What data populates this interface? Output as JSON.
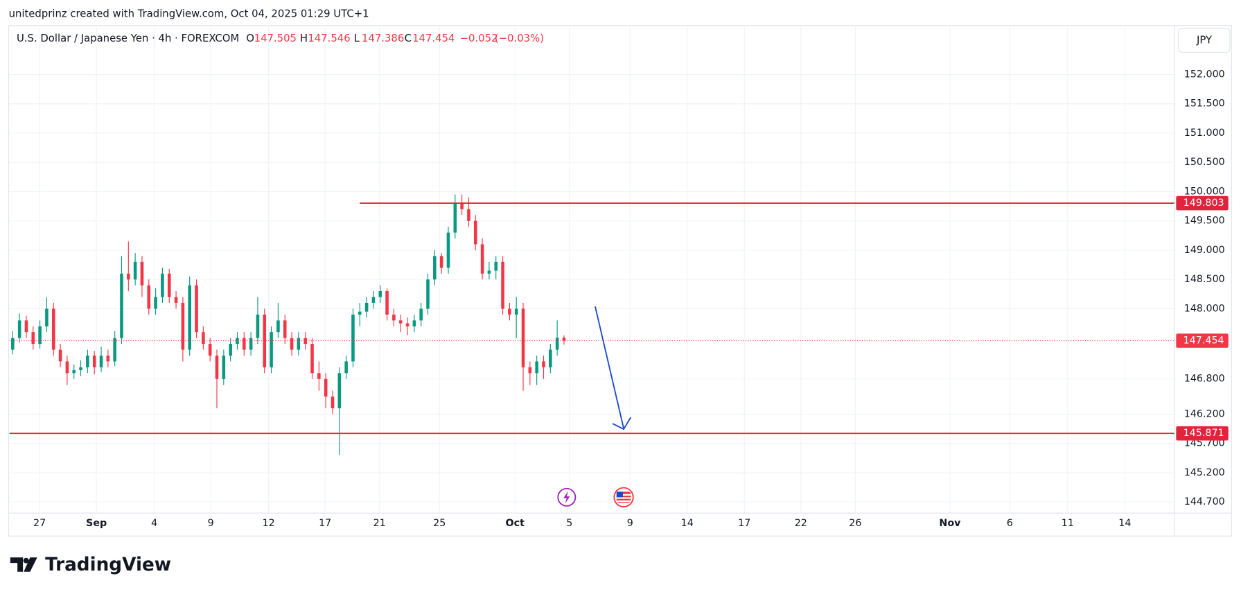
{
  "attribution": "unitedprinz created with TradingView.com, Oct 04, 2025 01:29 UTC+1",
  "brand": "TradingView",
  "chart_data": {
    "type": "candlestick",
    "title": "U.S. Dollar / Japanese Yen · 4h · FOREXCOM",
    "ohlc_labels": [
      "O",
      "H",
      "L",
      "C"
    ],
    "change": "−0.052",
    "change_percent": "(−0.03%)",
    "currency": "JPY",
    "up_color": "#089981",
    "down_color": "#f23645",
    "grid": true,
    "candles": [
      [
        147.3,
        147.62,
        147.22,
        147.5
      ],
      [
        147.5,
        147.92,
        147.42,
        147.8
      ],
      [
        147.8,
        147.88,
        147.5,
        147.6
      ],
      [
        147.6,
        147.7,
        147.3,
        147.4
      ],
      [
        147.4,
        147.8,
        147.32,
        147.7
      ],
      [
        147.7,
        148.2,
        147.6,
        148.0
      ],
      [
        148.0,
        148.1,
        147.2,
        147.3
      ],
      [
        147.3,
        147.4,
        147.0,
        147.1
      ],
      [
        147.1,
        147.2,
        146.7,
        146.9
      ],
      [
        146.9,
        147.05,
        146.8,
        146.95
      ],
      [
        146.95,
        147.12,
        146.85,
        147.0
      ],
      [
        147.0,
        147.3,
        146.9,
        147.2
      ],
      [
        147.2,
        147.28,
        146.88,
        147.0
      ],
      [
        147.0,
        147.35,
        146.92,
        147.2
      ],
      [
        147.2,
        147.3,
        147.0,
        147.1
      ],
      [
        147.1,
        147.62,
        147.02,
        147.5
      ],
      [
        147.5,
        148.9,
        147.4,
        148.6
      ],
      [
        148.6,
        149.15,
        148.3,
        148.5
      ],
      [
        148.5,
        148.95,
        148.4,
        148.8
      ],
      [
        148.8,
        148.9,
        148.2,
        148.4
      ],
      [
        148.4,
        148.5,
        147.9,
        148.0
      ],
      [
        148.0,
        148.35,
        147.9,
        148.2
      ],
      [
        148.2,
        148.7,
        148.1,
        148.6
      ],
      [
        148.6,
        148.68,
        148.1,
        148.2
      ],
      [
        148.2,
        148.3,
        148.0,
        148.1
      ],
      [
        148.1,
        148.2,
        147.1,
        147.3
      ],
      [
        147.3,
        148.55,
        147.2,
        148.4
      ],
      [
        148.4,
        148.5,
        147.5,
        147.6
      ],
      [
        147.6,
        147.7,
        147.3,
        147.4
      ],
      [
        147.4,
        147.5,
        147.1,
        147.2
      ],
      [
        147.2,
        147.3,
        146.3,
        146.8
      ],
      [
        146.8,
        147.3,
        146.7,
        147.2
      ],
      [
        147.2,
        147.5,
        147.1,
        147.4
      ],
      [
        147.4,
        147.6,
        147.3,
        147.5
      ],
      [
        147.5,
        147.6,
        147.2,
        147.3
      ],
      [
        147.3,
        147.6,
        147.2,
        147.5
      ],
      [
        147.5,
        148.2,
        147.4,
        147.9
      ],
      [
        147.9,
        148.0,
        146.9,
        147.0
      ],
      [
        147.0,
        147.7,
        146.9,
        147.6
      ],
      [
        147.6,
        148.1,
        147.5,
        147.8
      ],
      [
        147.8,
        147.9,
        147.4,
        147.5
      ],
      [
        147.5,
        147.6,
        147.2,
        147.3
      ],
      [
        147.3,
        147.6,
        147.2,
        147.5
      ],
      [
        147.5,
        147.6,
        147.3,
        147.4
      ],
      [
        147.4,
        147.5,
        146.8,
        146.9
      ],
      [
        146.9,
        147.1,
        146.6,
        146.8
      ],
      [
        146.8,
        146.9,
        146.3,
        146.5
      ],
      [
        146.5,
        146.6,
        146.2,
        146.3
      ],
      [
        146.3,
        147.0,
        145.5,
        146.9
      ],
      [
        146.9,
        147.2,
        146.8,
        147.1
      ],
      [
        147.1,
        148.0,
        147.0,
        147.9
      ],
      [
        147.9,
        148.1,
        147.7,
        147.95
      ],
      [
        147.95,
        148.2,
        147.85,
        148.1
      ],
      [
        148.1,
        148.3,
        148.0,
        148.2
      ],
      [
        148.2,
        148.4,
        148.1,
        148.3
      ],
      [
        148.3,
        148.35,
        147.8,
        147.9
      ],
      [
        147.9,
        148.0,
        147.7,
        147.8
      ],
      [
        147.8,
        147.9,
        147.6,
        147.75
      ],
      [
        147.75,
        147.85,
        147.55,
        147.7
      ],
      [
        147.7,
        147.9,
        147.6,
        147.8
      ],
      [
        147.8,
        148.1,
        147.7,
        148.0
      ],
      [
        148.0,
        148.6,
        147.9,
        148.5
      ],
      [
        148.5,
        149.0,
        148.4,
        148.9
      ],
      [
        148.9,
        148.95,
        148.6,
        148.7
      ],
      [
        148.7,
        149.4,
        148.6,
        149.3
      ],
      [
        149.3,
        149.95,
        149.2,
        149.8
      ],
      [
        149.8,
        149.95,
        149.6,
        149.7
      ],
      [
        149.7,
        149.9,
        149.4,
        149.5
      ],
      [
        149.5,
        149.6,
        149.0,
        149.1
      ],
      [
        149.1,
        149.2,
        148.5,
        148.6
      ],
      [
        148.6,
        148.8,
        148.5,
        148.65
      ],
      [
        148.65,
        148.9,
        148.5,
        148.8
      ],
      [
        148.8,
        148.9,
        147.9,
        148.0
      ],
      [
        148.0,
        148.1,
        147.8,
        147.9
      ],
      [
        147.9,
        148.2,
        147.5,
        148.0
      ],
      [
        148.0,
        148.1,
        146.6,
        147.0
      ],
      [
        147.0,
        147.1,
        146.7,
        146.9
      ],
      [
        146.9,
        147.2,
        146.7,
        147.1
      ],
      [
        147.1,
        147.2,
        146.8,
        147.0
      ],
      [
        147.0,
        147.4,
        146.9,
        147.3
      ],
      [
        147.3,
        147.8,
        147.2,
        147.505
      ],
      [
        147.505,
        147.546,
        147.386,
        147.454
      ]
    ],
    "xlim": [
      -0.47,
      170.7
    ],
    "xticks": [
      {
        "value": 3.95,
        "label": "27"
      },
      {
        "value": 12.3,
        "label": "Sep"
      },
      {
        "value": 20.8,
        "label": "4"
      },
      {
        "value": 29.1,
        "label": "9"
      },
      {
        "value": 37.6,
        "label": "12"
      },
      {
        "value": 45.9,
        "label": "17"
      },
      {
        "value": 53.9,
        "label": "21"
      },
      {
        "value": 62.7,
        "label": "25"
      },
      {
        "value": 73.8,
        "label": "Oct"
      },
      {
        "value": 81.8,
        "label": "5"
      },
      {
        "value": 90.7,
        "label": "9"
      },
      {
        "value": 99.1,
        "label": "14"
      },
      {
        "value": 107.5,
        "label": "17"
      },
      {
        "value": 115.8,
        "label": "22"
      },
      {
        "value": 123.8,
        "label": "26"
      },
      {
        "value": 137.7,
        "label": "Nov"
      },
      {
        "value": 146.5,
        "label": "6"
      },
      {
        "value": 155,
        "label": "11"
      },
      {
        "value": 163.4,
        "label": "14"
      }
    ],
    "ylim": [
      144.51,
      152.84
    ],
    "yticks": [
      {
        "value": 144.7,
        "label": "144.700"
      },
      {
        "value": 145.2,
        "label": "145.200"
      },
      {
        "value": 145.7,
        "label": "145.700"
      },
      {
        "value": 146.2,
        "label": "146.200"
      },
      {
        "value": 146.8,
        "label": "146.800"
      },
      {
        "value": 148,
        "label": "148.000"
      },
      {
        "value": 148.5,
        "label": "148.500"
      },
      {
        "value": 149,
        "label": "149.000"
      },
      {
        "value": 149.5,
        "label": "149.500"
      },
      {
        "value": 150,
        "label": "150.000"
      },
      {
        "value": 150.5,
        "label": "150.500"
      },
      {
        "value": 151,
        "label": "151.000"
      },
      {
        "value": 151.5,
        "label": "151.500"
      },
      {
        "value": 152,
        "label": "152.000"
      }
    ],
    "hlines": [
      {
        "value": 149.803,
        "start_x": 51,
        "color": "#e0243b"
      },
      {
        "value": 145.871,
        "start_x": -0.47,
        "color": "#e0243b"
      }
    ]
  }
}
